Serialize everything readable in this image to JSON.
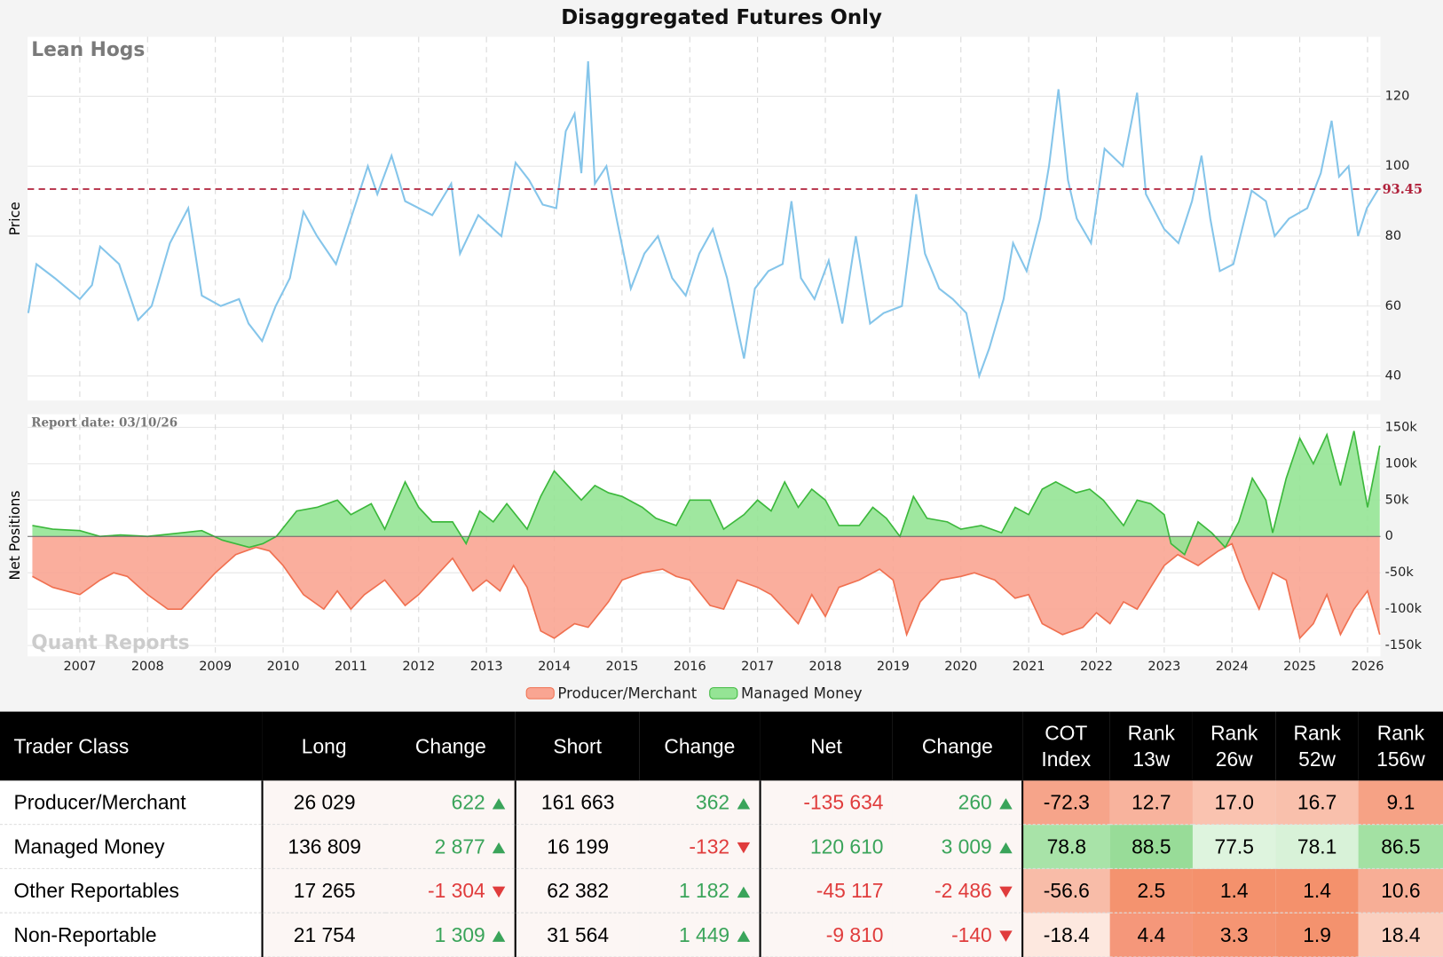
{
  "chart_data": [
    {
      "type": "line",
      "title": "Disaggregated Futures Only",
      "subtitle": "Lean Hogs",
      "ylabel": "Price",
      "color": "#85c5ea",
      "xlim": [
        2006.23,
        2026.19
      ],
      "xticks": [
        2007,
        2008,
        2009,
        2010,
        2011,
        2012,
        2013,
        2014,
        2015,
        2016,
        2017,
        2018,
        2019,
        2020,
        2021,
        2022,
        2023,
        2024,
        2025,
        2026
      ],
      "ylim": [
        33,
        137
      ],
      "yticks": [
        40,
        60,
        80,
        100,
        120
      ],
      "grid": true,
      "reference_line": {
        "value": 93.45,
        "label": "93.45",
        "color": "#b0203a"
      },
      "x": [
        2006.24,
        2006.36,
        2006.63,
        2007.0,
        2007.18,
        2007.3,
        2007.58,
        2007.86,
        2008.06,
        2008.33,
        2008.6,
        2008.8,
        2009.08,
        2009.35,
        2009.49,
        2009.69,
        2009.89,
        2010.1,
        2010.3,
        2010.5,
        2010.78,
        2011.05,
        2011.25,
        2011.39,
        2011.6,
        2011.8,
        2012.0,
        2012.2,
        2012.48,
        2012.61,
        2012.88,
        2013.22,
        2013.43,
        2013.63,
        2013.83,
        2014.03,
        2014.17,
        2014.3,
        2014.4,
        2014.5,
        2014.6,
        2014.77,
        2014.92,
        2015.13,
        2015.33,
        2015.53,
        2015.74,
        2015.94,
        2016.14,
        2016.34,
        2016.55,
        2016.69,
        2016.8,
        2016.96,
        2017.16,
        2017.37,
        2017.5,
        2017.64,
        2017.84,
        2018.05,
        2018.25,
        2018.45,
        2018.66,
        2018.86,
        2019.13,
        2019.34,
        2019.47,
        2019.68,
        2019.88,
        2020.08,
        2020.27,
        2020.42,
        2020.63,
        2020.77,
        2020.97,
        2021.17,
        2021.3,
        2021.44,
        2021.58,
        2021.71,
        2021.92,
        2022.12,
        2022.39,
        2022.6,
        2022.73,
        2023.0,
        2023.21,
        2023.41,
        2023.55,
        2023.68,
        2023.82,
        2024.02,
        2024.29,
        2024.5,
        2024.63,
        2024.84,
        2025.11,
        2025.31,
        2025.47,
        2025.58,
        2025.72,
        2025.86,
        2025.99,
        2026.16
      ],
      "values": [
        58,
        72,
        68,
        62,
        66,
        77,
        72,
        56,
        60,
        78,
        88,
        63,
        60,
        62,
        55,
        50,
        60,
        68,
        87,
        80,
        72,
        88,
        100,
        92,
        103,
        90,
        88,
        86,
        95,
        75,
        86,
        80,
        101,
        96,
        89,
        88,
        110,
        115,
        98,
        130,
        95,
        100,
        85,
        65,
        75,
        80,
        68,
        63,
        75,
        82,
        68,
        55,
        45,
        65,
        70,
        72,
        90,
        68,
        62,
        73,
        55,
        80,
        55,
        58,
        60,
        92,
        75,
        65,
        62,
        58,
        40,
        48,
        62,
        78,
        70,
        85,
        100,
        122,
        96,
        85,
        78,
        105,
        100,
        121,
        92,
        82,
        78,
        90,
        103,
        85,
        70,
        72,
        93,
        90,
        80,
        85,
        88,
        98,
        113,
        97,
        100,
        80,
        88,
        93.45
      ]
    },
    {
      "type": "area",
      "ylabel": "Net Positions",
      "annotation": "Report date: 03/10/26",
      "watermark": "Quant Reports",
      "xlim": [
        2006.23,
        2026.19
      ],
      "xticks": [
        2007,
        2008,
        2009,
        2010,
        2011,
        2012,
        2013,
        2014,
        2015,
        2016,
        2017,
        2018,
        2019,
        2020,
        2021,
        2022,
        2023,
        2024,
        2025,
        2026
      ],
      "ylim": [
        -165000,
        168000
      ],
      "yticks": [
        {
          "value": 150000,
          "label": "150k"
        },
        {
          "value": 100000,
          "label": "100k"
        },
        {
          "value": 50000,
          "label": "50k"
        },
        0,
        {
          "value": -50000,
          "label": "-50k"
        },
        {
          "value": -100000,
          "label": "-100k"
        },
        {
          "value": -150000,
          "label": "-150k"
        }
      ],
      "grid": true,
      "series": [
        {
          "name": "Producer/Merchant",
          "color": "#f07050",
          "fill": "#f9a592",
          "x": [
            2006.3,
            2006.6,
            2007.0,
            2007.3,
            2007.5,
            2007.7,
            2008.0,
            2008.3,
            2008.5,
            2008.7,
            2009.0,
            2009.3,
            2009.6,
            2009.8,
            2010.0,
            2010.3,
            2010.6,
            2010.8,
            2011.0,
            2011.2,
            2011.5,
            2011.8,
            2012.0,
            2012.3,
            2012.5,
            2012.8,
            2013.0,
            2013.2,
            2013.4,
            2013.6,
            2013.8,
            2014.0,
            2014.3,
            2014.5,
            2014.8,
            2015.0,
            2015.3,
            2015.6,
            2015.8,
            2016.0,
            2016.3,
            2016.5,
            2016.7,
            2017.0,
            2017.2,
            2017.4,
            2017.6,
            2017.8,
            2018.0,
            2018.2,
            2018.5,
            2018.8,
            2019.0,
            2019.2,
            2019.4,
            2019.7,
            2020.0,
            2020.2,
            2020.5,
            2020.8,
            2021.0,
            2021.2,
            2021.5,
            2021.8,
            2022.0,
            2022.2,
            2022.4,
            2022.6,
            2022.8,
            2023.0,
            2023.2,
            2023.5,
            2023.8,
            2024.0,
            2024.2,
            2024.4,
            2024.6,
            2024.8,
            2025.0,
            2025.2,
            2025.4,
            2025.6,
            2025.8,
            2026.0,
            2026.18
          ],
          "values": [
            -55000,
            -70000,
            -80000,
            -60000,
            -50000,
            -55000,
            -80000,
            -100000,
            -100000,
            -80000,
            -50000,
            -25000,
            -15000,
            -20000,
            -40000,
            -80000,
            -100000,
            -75000,
            -100000,
            -80000,
            -60000,
            -95000,
            -80000,
            -50000,
            -30000,
            -75000,
            -60000,
            -75000,
            -40000,
            -70000,
            -130000,
            -140000,
            -120000,
            -125000,
            -90000,
            -60000,
            -50000,
            -45000,
            -55000,
            -60000,
            -95000,
            -100000,
            -60000,
            -70000,
            -80000,
            -100000,
            -120000,
            -80000,
            -110000,
            -70000,
            -60000,
            -45000,
            -60000,
            -135000,
            -90000,
            -60000,
            -55000,
            -50000,
            -60000,
            -85000,
            -80000,
            -120000,
            -135000,
            -125000,
            -105000,
            -120000,
            -90000,
            -100000,
            -70000,
            -40000,
            -25000,
            -40000,
            -20000,
            -10000,
            -60000,
            -100000,
            -50000,
            -60000,
            -140000,
            -120000,
            -80000,
            -135000,
            -100000,
            -75000,
            -135000
          ]
        },
        {
          "name": "Managed Money",
          "color": "#3cb83c",
          "fill": "#95e495",
          "x": [
            2006.3,
            2006.6,
            2007.0,
            2007.3,
            2007.6,
            2008.0,
            2008.5,
            2008.8,
            2009.1,
            2009.5,
            2009.7,
            2009.9,
            2010.2,
            2010.5,
            2010.8,
            2011.0,
            2011.3,
            2011.5,
            2011.8,
            2012.0,
            2012.2,
            2012.5,
            2012.7,
            2012.9,
            2013.1,
            2013.3,
            2013.6,
            2013.8,
            2014.0,
            2014.2,
            2014.4,
            2014.6,
            2014.8,
            2015.0,
            2015.3,
            2015.5,
            2015.8,
            2016.0,
            2016.3,
            2016.5,
            2016.8,
            2017.0,
            2017.2,
            2017.4,
            2017.6,
            2017.8,
            2018.0,
            2018.2,
            2018.5,
            2018.7,
            2018.9,
            2019.1,
            2019.3,
            2019.5,
            2019.8,
            2020.0,
            2020.3,
            2020.6,
            2020.8,
            2021.0,
            2021.2,
            2021.4,
            2021.7,
            2021.9,
            2022.1,
            2022.4,
            2022.6,
            2022.8,
            2023.0,
            2023.1,
            2023.3,
            2023.5,
            2023.7,
            2023.9,
            2024.1,
            2024.3,
            2024.5,
            2024.6,
            2024.8,
            2025.0,
            2025.2,
            2025.4,
            2025.6,
            2025.8,
            2026.0,
            2026.18
          ],
          "values": [
            15000,
            10000,
            8000,
            0,
            2000,
            0,
            5000,
            8000,
            -5000,
            -15000,
            -10000,
            0,
            35000,
            40000,
            50000,
            30000,
            45000,
            10000,
            75000,
            40000,
            20000,
            20000,
            -10000,
            35000,
            20000,
            45000,
            10000,
            55000,
            90000,
            70000,
            50000,
            70000,
            60000,
            55000,
            40000,
            25000,
            15000,
            50000,
            50000,
            10000,
            30000,
            50000,
            35000,
            75000,
            40000,
            65000,
            50000,
            15000,
            15000,
            40000,
            25000,
            0,
            55000,
            25000,
            20000,
            10000,
            15000,
            5000,
            40000,
            30000,
            65000,
            75000,
            60000,
            65000,
            50000,
            15000,
            50000,
            45000,
            30000,
            -10000,
            -25000,
            20000,
            5000,
            -15000,
            20000,
            80000,
            50000,
            5000,
            80000,
            135000,
            100000,
            140000,
            70000,
            145000,
            40000,
            125000
          ]
        }
      ]
    }
  ],
  "table": {
    "header": [
      "Trader Class",
      "Long",
      "Change",
      "Short",
      "Change",
      "Net",
      "Change",
      "COT\nIndex",
      "Rank\n13w",
      "Rank\n26w",
      "Rank\n52w",
      "Rank\n156w"
    ],
    "rows": [
      {
        "cells": [
          "Producer/Merchant",
          "26 029",
          "622",
          "161 663",
          "362",
          "-135 634",
          "260",
          "-72.3",
          "12.7",
          "17.0",
          "16.7",
          "9.1"
        ],
        "heat_colors": [
          "#f6a48a",
          "#f8b39d",
          "#fac3b0",
          "#f9c0ac",
          "#f6a285"
        ]
      },
      {
        "cells": [
          "Managed Money",
          "136 809",
          "2 877",
          "16 199",
          "-132",
          "120 610",
          "3 009",
          "78.8",
          "88.5",
          "77.5",
          "78.1",
          "86.5"
        ],
        "heat_colors": [
          "#a8e3a8",
          "#98dc98",
          "#def4de",
          "#d8f2d8",
          "#a3e1a3"
        ]
      },
      {
        "cells": [
          "Other Reportables",
          "17 265",
          "-1 304",
          "62 382",
          "1 182",
          "-45 117",
          "-2 486",
          "-56.6",
          "2.5",
          "1.4",
          "1.4",
          "10.6"
        ],
        "heat_colors": [
          "#f8bca8",
          "#f4936f",
          "#f4916c",
          "#f4916c",
          "#f7ae96"
        ]
      },
      {
        "cells": [
          "Non-Reportable",
          "21 754",
          "1 309",
          "31 564",
          "1 449",
          "-9 810",
          "-140",
          "-18.4",
          "4.4",
          "3.3",
          "1.9",
          "18.4"
        ],
        "heat_colors": [
          "#fde8df",
          "#f5977a",
          "#f59573",
          "#f4926e",
          "#fad0c0"
        ]
      }
    ]
  }
}
